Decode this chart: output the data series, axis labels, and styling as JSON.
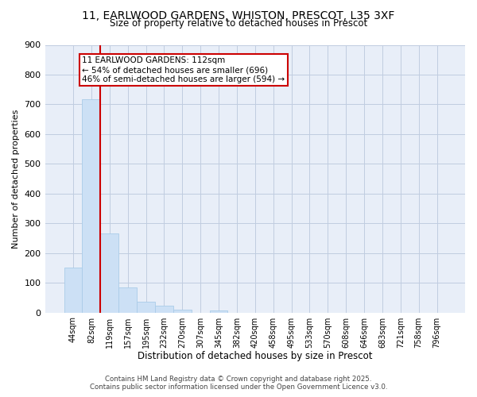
{
  "title_line1": "11, EARLWOOD GARDENS, WHISTON, PRESCOT, L35 3XF",
  "title_line2": "Size of property relative to detached houses in Prescot",
  "xlabel": "Distribution of detached houses by size in Prescot",
  "ylabel": "Number of detached properties",
  "bar_labels": [
    "44sqm",
    "82sqm",
    "119sqm",
    "157sqm",
    "195sqm",
    "232sqm",
    "270sqm",
    "307sqm",
    "345sqm",
    "382sqm",
    "420sqm",
    "458sqm",
    "495sqm",
    "533sqm",
    "570sqm",
    "608sqm",
    "646sqm",
    "683sqm",
    "721sqm",
    "758sqm",
    "796sqm"
  ],
  "bar_values": [
    150,
    716,
    265,
    84,
    36,
    22,
    10,
    0,
    8,
    0,
    0,
    0,
    0,
    0,
    0,
    0,
    0,
    0,
    0,
    0,
    0
  ],
  "bar_color": "#cce0f5",
  "bar_edge_color": "#aacce8",
  "annotation_line1": "11 EARLWOOD GARDENS: 112sqm",
  "annotation_line2": "← 54% of detached houses are smaller (696)",
  "annotation_line3": "46% of semi-detached houses are larger (594) →",
  "vline_color": "#cc0000",
  "vline_x_index": 2,
  "ylim": [
    0,
    900
  ],
  "yticks": [
    0,
    100,
    200,
    300,
    400,
    500,
    600,
    700,
    800,
    900
  ],
  "footer_line1": "Contains HM Land Registry data © Crown copyright and database right 2025.",
  "footer_line2": "Contains public sector information licensed under the Open Government Licence v3.0.",
  "bg_color": "#e8eef8",
  "grid_color": "#c0cce0"
}
